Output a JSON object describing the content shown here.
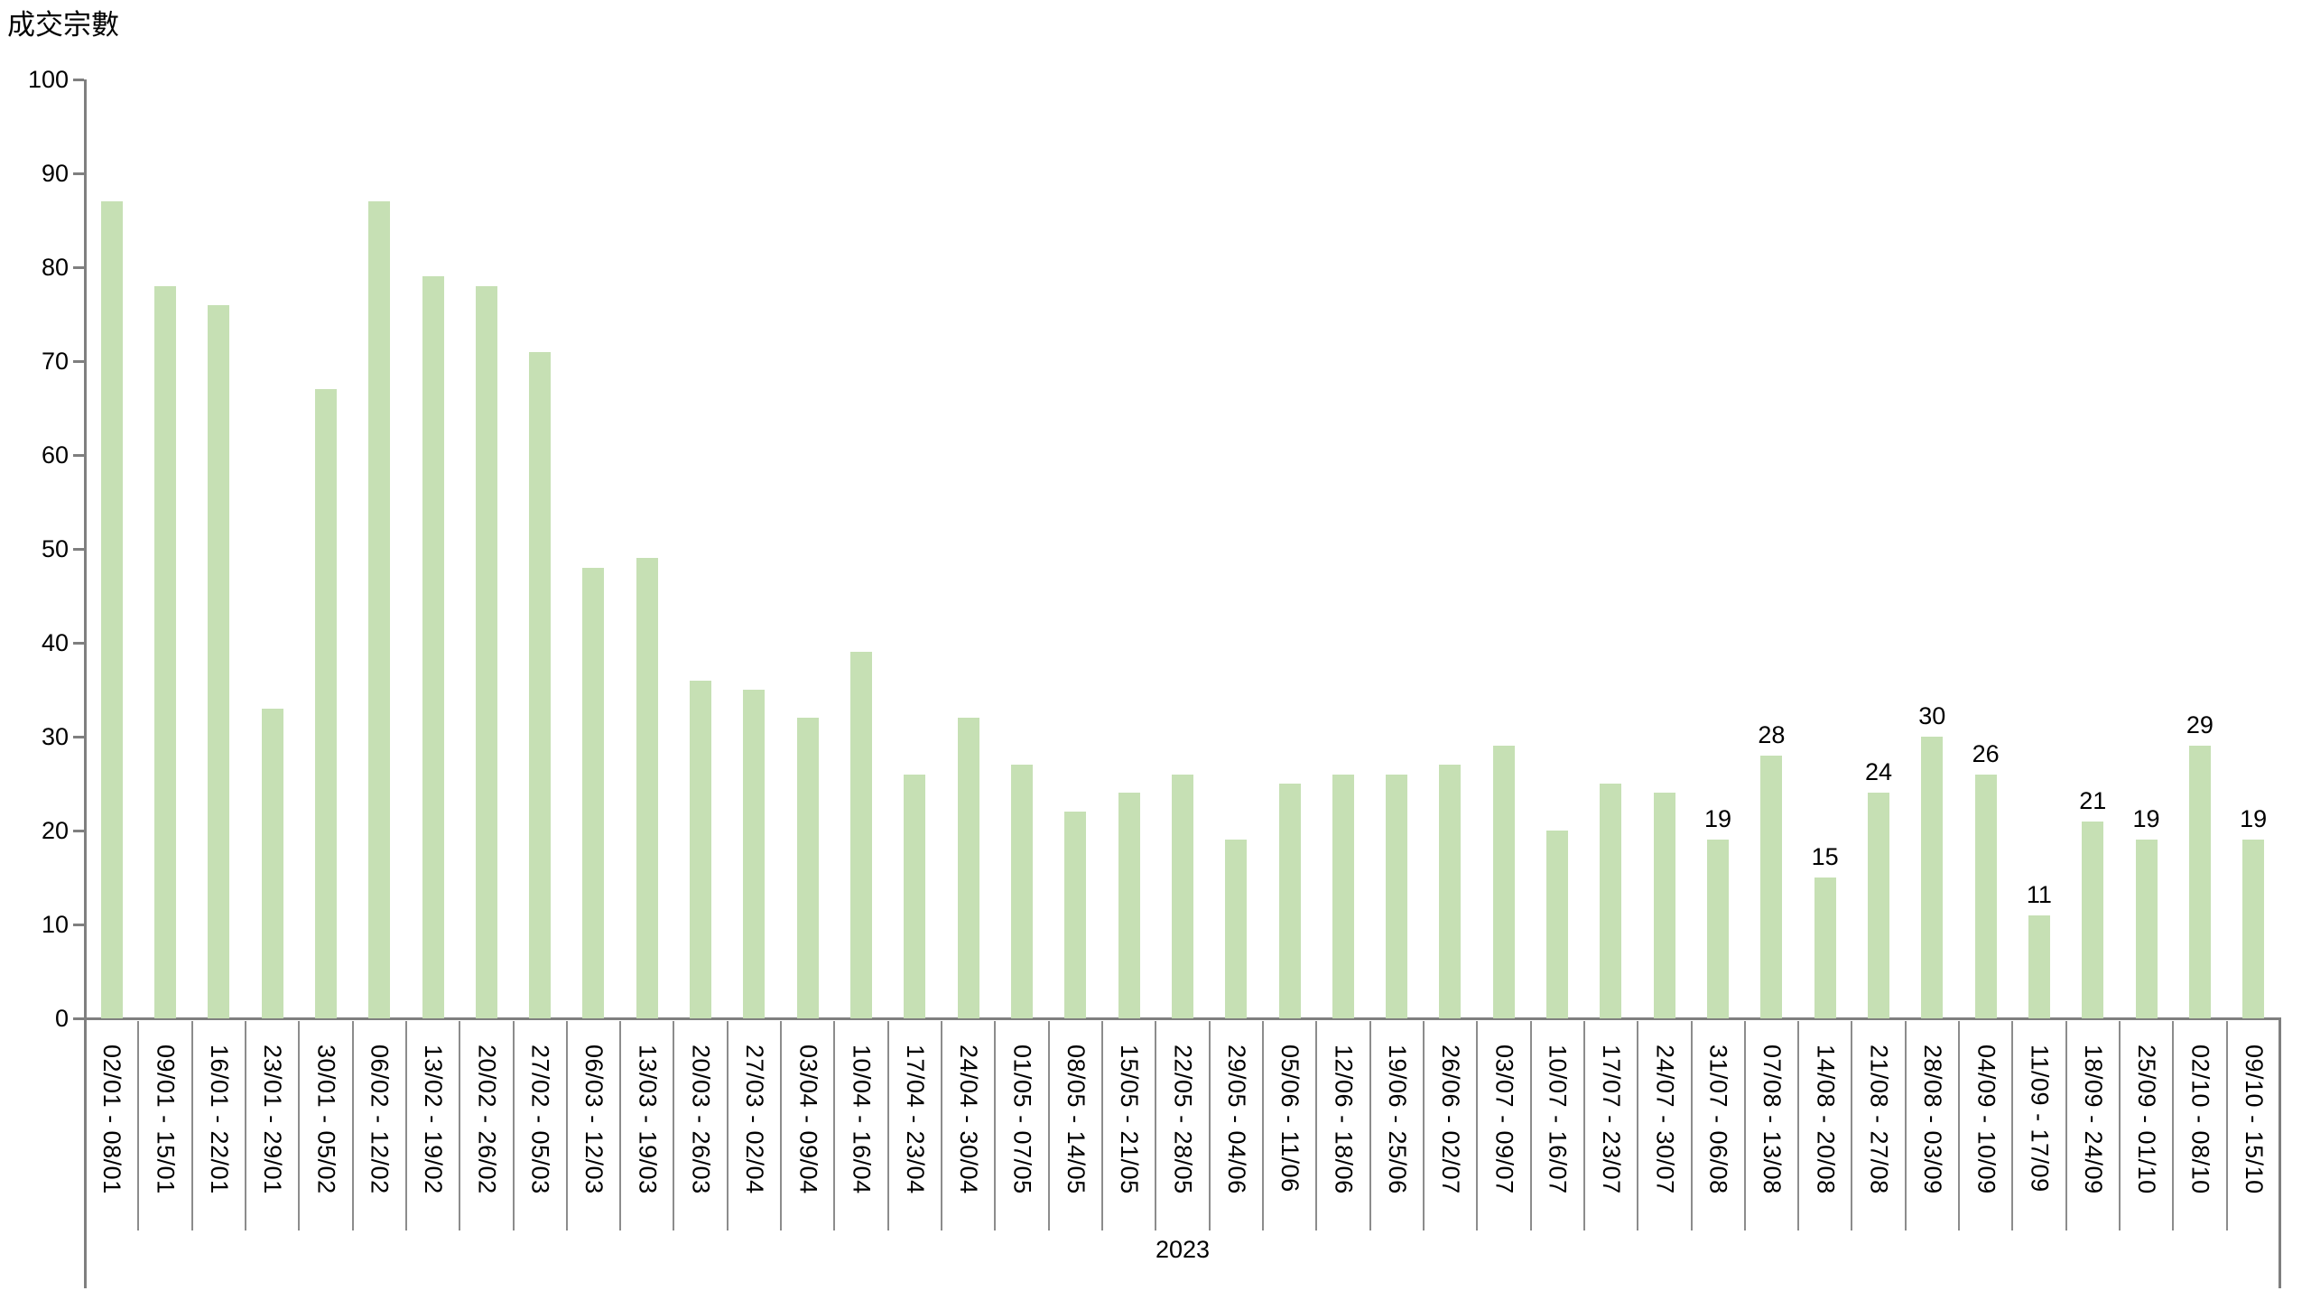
{
  "chart_data": {
    "type": "bar",
    "title": "成交宗數",
    "year_label": "2023",
    "xlabel": "2023",
    "ylabel": "成交宗數",
    "ylim": [
      0,
      100
    ],
    "grid": false,
    "legend": "none",
    "categories": [
      "02/01 - 08/01",
      "09/01 - 15/01",
      "16/01 - 22/01",
      "23/01 - 29/01",
      "30/01 - 05/02",
      "06/02 - 12/02",
      "13/02 - 19/02",
      "20/02 - 26/02",
      "27/02 - 05/03",
      "06/03 - 12/03",
      "13/03 - 19/03",
      "20/03 - 26/03",
      "27/03 - 02/04",
      "03/04 - 09/04",
      "10/04 - 16/04",
      "17/04 - 23/04",
      "24/04 - 30/04",
      "01/05 - 07/05",
      "08/05 - 14/05",
      "15/05 - 21/05",
      "22/05 - 28/05",
      "29/05 - 04/06",
      "05/06 - 11/06",
      "12/06 - 18/06",
      "19/06 - 25/06",
      "26/06 - 02/07",
      "03/07 - 09/07",
      "10/07 - 16/07",
      "17/07 - 23/07",
      "24/07 - 30/07",
      "31/07 - 06/08",
      "07/08 - 13/08",
      "14/08 - 20/08",
      "21/08 - 27/08",
      "28/08 - 03/09",
      "04/09 - 10/09",
      "11/09 - 17/09",
      "18/09 - 24/09",
      "25/09 - 01/10",
      "02/10 - 08/10",
      "09/10 - 15/10"
    ],
    "values": [
      87,
      78,
      76,
      33,
      67,
      87,
      79,
      78,
      71,
      48,
      49,
      36,
      35,
      32,
      39,
      26,
      32,
      27,
      22,
      24,
      26,
      19,
      25,
      26,
      26,
      27,
      29,
      20,
      25,
      24,
      19,
      28,
      15,
      24,
      30,
      26,
      11,
      21,
      19,
      29,
      19
    ],
    "data_labels_start_index": 30,
    "data_labels_shown": [
      19,
      28,
      15,
      24,
      30,
      26,
      11,
      21,
      19,
      29,
      19
    ],
    "y_axis": {
      "min": 0,
      "max": 100,
      "step": 10,
      "ticks": [
        0,
        10,
        20,
        30,
        40,
        50,
        60,
        70,
        80,
        90,
        100
      ]
    },
    "colors": {
      "bar_fill": "#c6e0b4",
      "axis_line": "#7f7f7f",
      "separator": "#8c8c8c",
      "text": "#000000"
    }
  }
}
